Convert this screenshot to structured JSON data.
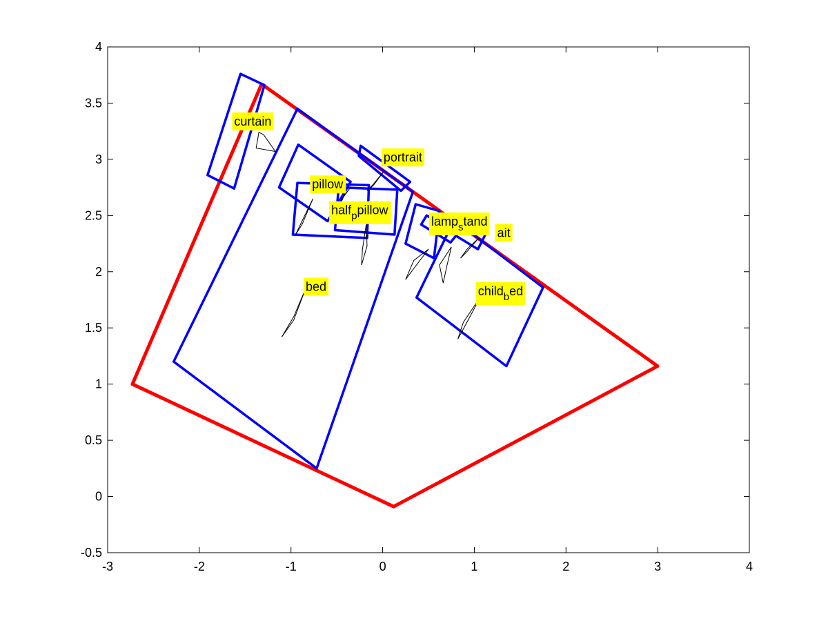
{
  "chart_data": {
    "type": "line",
    "title": "",
    "xlabel": "",
    "ylabel": "",
    "xlim": [
      -3,
      4
    ],
    "ylim": [
      -0.5,
      4
    ],
    "xticks": [
      "-3",
      "-2",
      "-1",
      "0",
      "1",
      "2",
      "3",
      "4"
    ],
    "yticks": [
      "-0.5",
      "0",
      "0.5",
      "1",
      "1.5",
      "2",
      "2.5",
      "3",
      "3.5",
      "4"
    ],
    "grid": false,
    "colors": {
      "room": "#ff0000",
      "objects": "#0000ff",
      "label_bg": "#ffff00",
      "arrow": "#000000"
    },
    "room": [
      [
        -1.32,
        3.67
      ],
      [
        3.0,
        1.16
      ],
      [
        0.12,
        -0.09
      ],
      [
        -2.73,
        1.0
      ],
      [
        -1.32,
        3.67
      ]
    ],
    "objects": [
      {
        "label": "curtain",
        "box": [
          [
            -1.55,
            3.76
          ],
          [
            -1.29,
            3.66
          ],
          [
            -1.62,
            2.74
          ],
          [
            -1.91,
            2.86
          ]
        ],
        "label_pos": [
          -1.55,
          3.22
        ],
        "arrow": [
          [
            -1.3,
            3.22
          ],
          [
            -1.17,
            3.07
          ],
          [
            -1.38,
            3.1
          ],
          [
            -1.35,
            3.24
          ]
        ]
      },
      {
        "label": "bed",
        "box": [
          [
            -0.93,
            3.45
          ],
          [
            0.33,
            2.71
          ],
          [
            -0.72,
            0.25
          ],
          [
            -2.28,
            1.2
          ]
        ],
        "label_pos": [
          -0.84,
          1.85
        ],
        "arrow": [
          [
            -0.84,
            1.85
          ],
          [
            -0.97,
            1.6
          ],
          [
            -1.1,
            1.42
          ],
          [
            -0.97,
            1.57
          ]
        ]
      },
      {
        "label": "portrait",
        "box": [
          [
            -0.24,
            3.12
          ],
          [
            0.3,
            2.8
          ],
          [
            0.2,
            2.72
          ],
          [
            -0.26,
            3.03
          ]
        ],
        "label_pos": [
          0.02,
          2.9
        ],
        "arrow": [
          [
            0.02,
            2.9
          ],
          [
            -0.1,
            2.78
          ],
          [
            -0.17,
            2.72
          ],
          [
            -0.1,
            2.77
          ]
        ]
      },
      {
        "label": "pillow",
        "box": [
          [
            -0.92,
            3.13
          ],
          [
            -0.35,
            2.8
          ],
          [
            -0.6,
            2.45
          ],
          [
            -1.13,
            2.75
          ]
        ],
        "label_pos": [
          -0.76,
          2.65
        ],
        "arrow": [
          [
            -0.76,
            2.65
          ],
          [
            -0.88,
            2.45
          ],
          [
            -0.95,
            2.33
          ],
          [
            -0.88,
            2.42
          ]
        ]
      },
      {
        "label": "half_pillow",
        "box": [
          [
            -0.93,
            2.79
          ],
          [
            -0.15,
            2.77
          ],
          [
            -0.17,
            2.3
          ],
          [
            -0.98,
            2.33
          ]
        ],
        "label_pos": [
          -0.55,
          2.43
        ],
        "arrow": [
          [
            -0.55,
            2.43
          ],
          [
            -0.42,
            2.68
          ],
          [
            -0.35,
            2.75
          ],
          [
            -0.45,
            2.64
          ]
        ]
      },
      {
        "label": "pillow",
        "box": [
          [
            -0.48,
            2.75
          ],
          [
            0.16,
            2.73
          ],
          [
            0.13,
            2.33
          ],
          [
            -0.52,
            2.37
          ]
        ],
        "label_pos": [
          -0.18,
          2.42
        ],
        "arrow": [
          [
            -0.18,
            2.42
          ],
          [
            -0.22,
            2.2
          ],
          [
            -0.23,
            2.06
          ],
          [
            -0.17,
            2.23
          ]
        ]
      },
      {
        "label": "lamp",
        "box": [
          [
            0.36,
            2.6
          ],
          [
            0.62,
            2.54
          ],
          [
            0.56,
            2.12
          ],
          [
            0.25,
            2.25
          ]
        ],
        "label_pos": [
          0.5,
          2.2
        ],
        "arrow": [
          [
            0.5,
            2.2
          ],
          [
            0.34,
            2.1
          ],
          [
            0.25,
            1.93
          ],
          [
            0.36,
            2.05
          ]
        ]
      },
      {
        "label": "lamp_stand",
        "box": [
          [
            0.48,
            2.5
          ],
          [
            0.82,
            2.34
          ],
          [
            0.74,
            2.26
          ],
          [
            0.42,
            2.42
          ]
        ],
        "label_pos": [
          0.75,
          2.22
        ],
        "arrow": [
          [
            0.75,
            2.22
          ],
          [
            0.62,
            2.06
          ],
          [
            0.66,
            1.9
          ],
          [
            0.7,
            2.05
          ]
        ]
      },
      {
        "label": "portrait",
        "box": [
          [
            0.87,
            2.44
          ],
          [
            1.12,
            2.33
          ],
          [
            1.04,
            2.2
          ],
          [
            0.8,
            2.32
          ]
        ],
        "label_pos": [
          1.05,
          2.3
        ],
        "arrow": [
          [
            1.05,
            2.3
          ],
          [
            0.92,
            2.2
          ],
          [
            0.85,
            2.12
          ],
          [
            0.92,
            2.18
          ]
        ]
      },
      {
        "label": "child_bed",
        "box": [
          [
            0.78,
            2.46
          ],
          [
            1.75,
            1.86
          ],
          [
            1.35,
            1.16
          ],
          [
            0.37,
            1.77
          ]
        ],
        "label_pos": [
          1.07,
          1.78
        ],
        "arrow": [
          [
            1.07,
            1.78
          ],
          [
            0.88,
            1.55
          ],
          [
            0.82,
            1.4
          ],
          [
            0.9,
            1.52
          ]
        ]
      }
    ],
    "labels": [
      {
        "text": "curtain",
        "sub": "",
        "rest": "",
        "x": -1.62,
        "y": 3.3
      },
      {
        "text": "portrait",
        "sub": "",
        "rest": "",
        "x": 0.01,
        "y": 2.98
      },
      {
        "text": "pillow",
        "sub": "",
        "rest": "",
        "x": -0.77,
        "y": 2.74
      },
      {
        "text": "half",
        "sub": "p",
        "rest": "pillow",
        "x": -0.56,
        "y": 2.51
      },
      {
        "text": "lamp",
        "sub": "s",
        "rest": "tand",
        "x": 0.53,
        "y": 2.41
      },
      {
        "text": "ait",
        "sub": "",
        "rest": "",
        "x": 1.25,
        "y": 2.31
      },
      {
        "text": "bed",
        "sub": "",
        "rest": "",
        "x": -0.84,
        "y": 1.83
      },
      {
        "text": "child",
        "sub": "b",
        "rest": "ed",
        "x": 1.04,
        "y": 1.79
      }
    ]
  }
}
